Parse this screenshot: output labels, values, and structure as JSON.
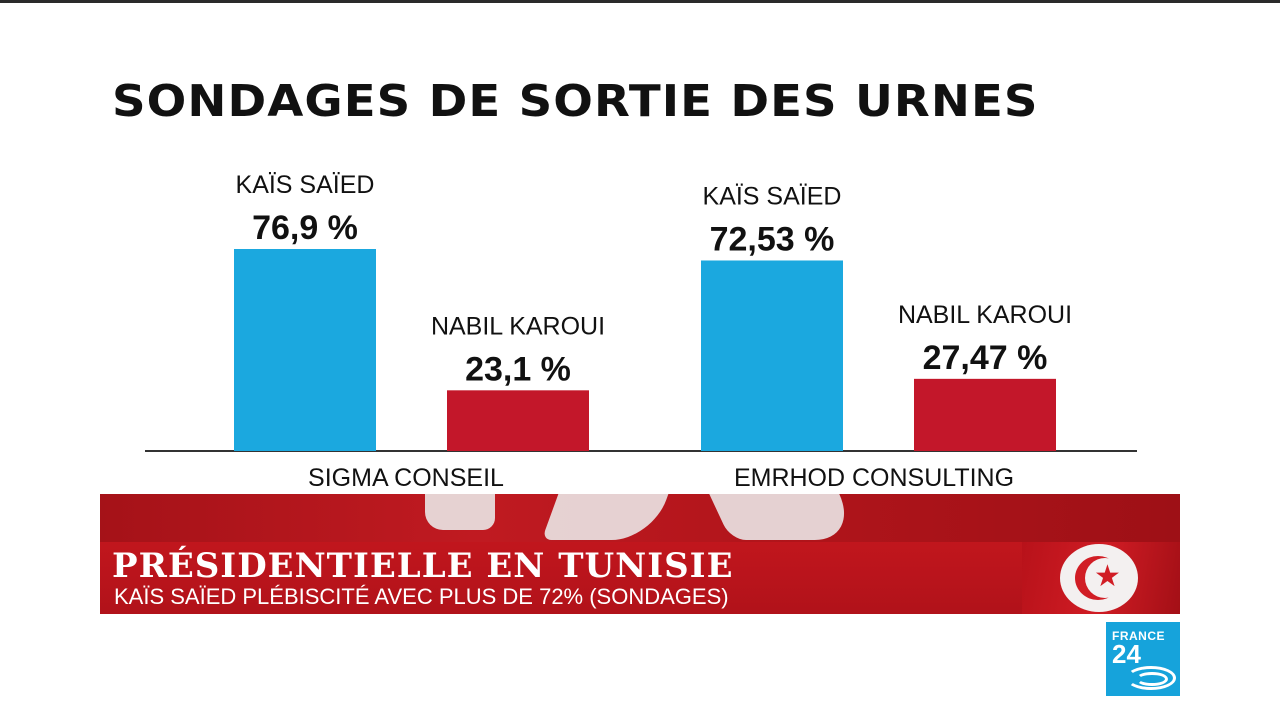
{
  "chart_data": {
    "type": "bar",
    "title": "SONDAGES DE SORTIE DES URNES",
    "ylim": [
      0,
      100
    ],
    "groups": [
      {
        "pollster": "SIGMA CONSEIL",
        "bars": [
          {
            "candidate": "KAÏS SAÏED",
            "value": 76.9,
            "label": "76,9 %",
            "color": "#1ba8df"
          },
          {
            "candidate": "NABIL KAROUI",
            "value": 23.1,
            "label": "23,1 %",
            "color": "#c3172a"
          }
        ]
      },
      {
        "pollster": "EMRHOD CONSULTING",
        "bars": [
          {
            "candidate": "KAÏS SAÏED",
            "value": 72.53,
            "label": "72,53 %",
            "color": "#1ba8df"
          },
          {
            "candidate": "NABIL KAROUI",
            "value": 27.47,
            "label": "27,47 %",
            "color": "#c3172a"
          }
        ]
      }
    ]
  },
  "banner": {
    "headline": "PRÉSIDENTIELLE EN TUNISIE",
    "subtitle": "KAÏS SAÏED PLÉBISCITÉ AVEC PLUS DE 72% (SONDAGES)"
  },
  "logo": {
    "line1": "FRANCE",
    "line2": "24"
  },
  "colors": {
    "blue": "#1ba8df",
    "red": "#c3172a",
    "banner_red": "#b5141b",
    "logo_blue": "#16a3db"
  }
}
